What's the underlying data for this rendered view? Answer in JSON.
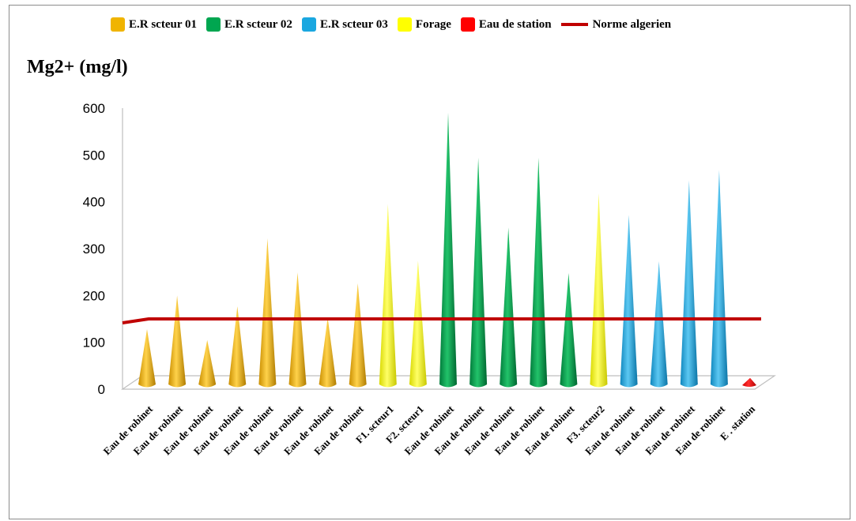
{
  "chart_data": {
    "type": "bar",
    "title": "",
    "ylabel": "Mg2+ (mg/l)",
    "xlabel": "",
    "ylim": [
      0,
      600
    ],
    "yticks": [
      0,
      100,
      200,
      300,
      400,
      500,
      600
    ],
    "categories": [
      "Eau de robinet",
      "Eau de robinet",
      "Eau de robinet",
      "Eau de robinet",
      "Eau de robinet",
      "Eau de robinet",
      "Eau de robinet",
      "Eau de robinet",
      "F1. scteur1",
      "F2. scteur1",
      "Eau de robinet",
      "Eau de robinet",
      "Eau de robinet",
      "Eau de robinet",
      "Eau de robinet",
      "F3. scteur2",
      "Eau de robinet",
      "Eau de robinet",
      "Eau de robinet",
      "Eau de robinet",
      "E . station"
    ],
    "values": [
      128,
      200,
      105,
      177,
      322,
      249,
      153,
      226,
      395,
      274,
      590,
      494,
      345,
      494,
      248,
      418,
      372,
      273,
      446,
      468,
      24
    ],
    "groups": [
      "s1",
      "s1",
      "s1",
      "s1",
      "s1",
      "s1",
      "s1",
      "s1",
      "forage",
      "forage",
      "s2",
      "s2",
      "s2",
      "s2",
      "s2",
      "forage",
      "s3",
      "s3",
      "s3",
      "s3",
      "station"
    ],
    "series": [
      {
        "key": "s1",
        "name": "E.R scteur 01",
        "color": "#f0b400"
      },
      {
        "key": "s2",
        "name": "E.R scteur 02",
        "color": "#00a650"
      },
      {
        "key": "s3",
        "name": "E.R scteur 03",
        "color": "#1aa7e0"
      },
      {
        "key": "forage",
        "name": "Forage",
        "color": "#ffff00"
      },
      {
        "key": "station",
        "name": "Eau de station",
        "color": "#ff0000"
      }
    ],
    "reference_line": {
      "name": "Norme algerien",
      "value": 150,
      "color": "#c00000"
    },
    "grid": false,
    "legend_position": "top"
  }
}
